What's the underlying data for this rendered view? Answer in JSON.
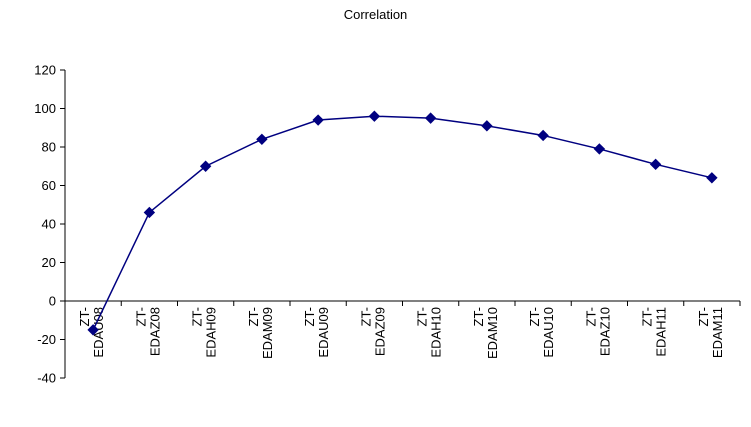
{
  "chart_data": {
    "type": "line",
    "title": "Correlation",
    "xlabel": "",
    "ylabel": "",
    "categories": [
      [
        "ZT-",
        "EDAU08"
      ],
      [
        "ZT-",
        "EDAZ08"
      ],
      [
        "ZT-",
        "EDAH09"
      ],
      [
        "ZT-",
        "EDAM09"
      ],
      [
        "ZT-",
        "EDAU09"
      ],
      [
        "ZT-",
        "EDAZ09"
      ],
      [
        "ZT-",
        "EDAH10"
      ],
      [
        "ZT-",
        "EDAM10"
      ],
      [
        "ZT-",
        "EDAU10"
      ],
      [
        "ZT-",
        "EDAZ10"
      ],
      [
        "ZT-",
        "EDAH11"
      ],
      [
        "ZT-",
        "EDAM11"
      ]
    ],
    "series": [
      {
        "values": [
          -15,
          46,
          70,
          84,
          94,
          96,
          95,
          91,
          86,
          79,
          71,
          64
        ],
        "color": "#000080",
        "marker": "diamond"
      }
    ],
    "ylim": [
      -40,
      120
    ],
    "yticks": [
      -40,
      -20,
      0,
      20,
      40,
      60,
      80,
      100,
      120
    ],
    "grid": false,
    "legend": "none"
  }
}
